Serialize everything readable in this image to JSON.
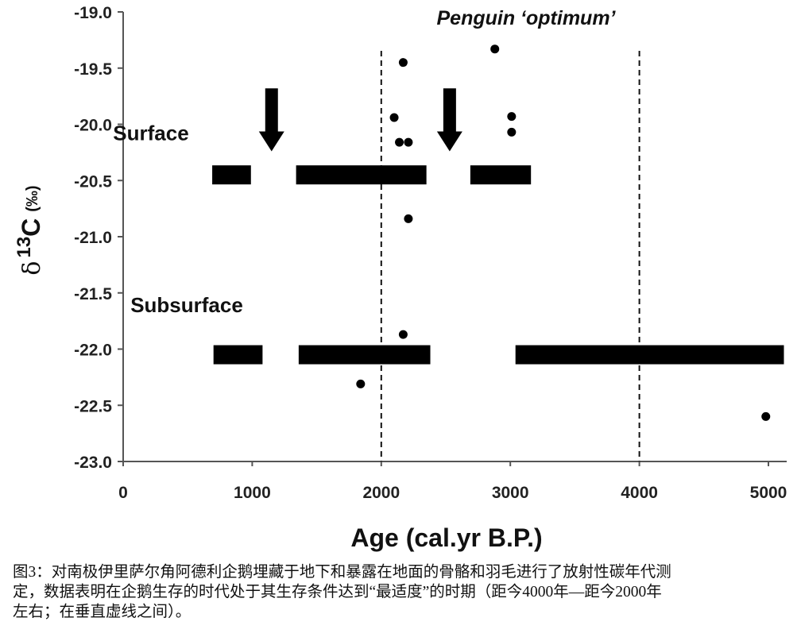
{
  "chart_data": {
    "type": "scatter",
    "title": "Penguin ‘optimum’",
    "xlabel": "Age (cal.yr B.P.)",
    "ylabel_main": "δ",
    "ylabel_sup": "13",
    "ylabel_rest": "C",
    "ylabel_unit": "(‰)",
    "xlim": [
      0,
      5000
    ],
    "ylim": [
      -23.0,
      -19.0
    ],
    "xticks": [
      "0",
      "1000",
      "2000",
      "3000",
      "4000",
      "5000"
    ],
    "xtick_values": [
      0,
      1000,
      2000,
      3000,
      4000,
      5000
    ],
    "yticks": [
      "-19.0",
      "-19.5",
      "-20.0",
      "-20.5",
      "-21.0",
      "-21.5",
      "-22.0",
      "-22.5",
      "-23.0"
    ],
    "ytick_values": [
      -19.0,
      -19.5,
      -20.0,
      -20.5,
      -21.0,
      -21.5,
      -22.0,
      -22.5,
      -23.0
    ],
    "grid": false,
    "points": [
      {
        "x": 2170,
        "y": -19.45
      },
      {
        "x": 2880,
        "y": -19.33
      },
      {
        "x": 2100,
        "y": -19.94
      },
      {
        "x": 3010,
        "y": -19.93
      },
      {
        "x": 3010,
        "y": -20.07
      },
      {
        "x": 2140,
        "y": -20.16
      },
      {
        "x": 2210,
        "y": -20.16
      },
      {
        "x": 2210,
        "y": -20.84
      },
      {
        "x": 2170,
        "y": -21.87
      },
      {
        "x": 1840,
        "y": -22.31
      },
      {
        "x": 4980,
        "y": -22.6
      }
    ],
    "range_bars": [
      {
        "group": "Surface",
        "y": -20.45,
        "segments": [
          [
            690,
            990
          ],
          [
            1340,
            2350
          ],
          [
            2690,
            3160
          ]
        ]
      },
      {
        "group": "Subsurface",
        "y": -22.05,
        "segments": [
          [
            700,
            1080
          ],
          [
            1360,
            2380
          ],
          [
            3040,
            5120
          ]
        ]
      }
    ],
    "group_labels": [
      {
        "text": "Surface",
        "x": 190,
        "y": -20.14
      },
      {
        "text": "Subsurface",
        "x": 235,
        "y": -21.67
      }
    ],
    "arrows": [
      {
        "x": 1150,
        "y_from": -19.68,
        "y_to": -20.24
      },
      {
        "x": 2530,
        "y_from": -19.68,
        "y_to": -20.24
      }
    ],
    "vertical_dashed_lines": [
      2000,
      4000
    ],
    "colors": {
      "marks": "#000000",
      "axis": "#555555"
    }
  },
  "caption": {
    "lines": [
      "图3：对南极伊里萨尔角阿德利企鹅埋藏于地下和暴露在地面的骨骼和羽毛进行了放射性碳年代测",
      "定，数据表明在企鹅生存的时代处于其生存条件达到“最适度”的时期（距今4000年—距今2000年",
      "左右；在垂直虚线之间）。"
    ]
  }
}
